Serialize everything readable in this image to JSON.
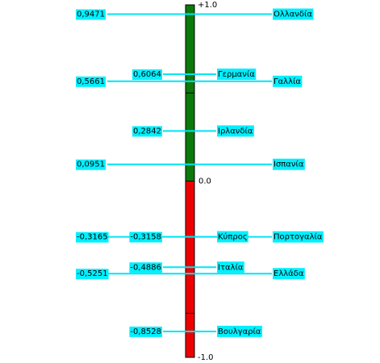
{
  "chart_data": {
    "type": "bar",
    "title": "",
    "xlabel": "",
    "ylabel": "",
    "ylim": [
      -1.0,
      1.0
    ],
    "axis_labels": {
      "max": "+1.0",
      "mid": "0.0",
      "min": "-1.0"
    },
    "colors": {
      "positive": "#0a7a0a",
      "negative": "#ee0000",
      "outline": "#000000",
      "line": "#00e5f5",
      "label_bg": "#00f0ff"
    },
    "left_items": [
      {
        "label": "0,9471",
        "value": 0.9471
      },
      {
        "label": "0,5661",
        "value": 0.5661
      },
      {
        "label": "0,0951",
        "value": 0.0951
      },
      {
        "label": "-0,3165",
        "value": -0.3165
      },
      {
        "label": "-0,5251",
        "value": -0.5251
      }
    ],
    "right_items": [
      {
        "label": "Ολλανδία",
        "value": 0.9471
      },
      {
        "label": "Γαλλία",
        "value": 0.5661
      },
      {
        "label": "Ισπανία",
        "value": 0.0951
      },
      {
        "label": "Πορτογαλία",
        "value": -0.3165
      },
      {
        "label": "Ελλάδα",
        "value": -0.5251
      }
    ],
    "center_items": [
      {
        "value_label": "0,6064",
        "name": "Γερμανία",
        "value": 0.6064
      },
      {
        "value_label": "0,2842",
        "name": "Ιρλανδία",
        "value": 0.2842
      },
      {
        "value_label": "-0,3158",
        "name": "Κύπρος",
        "value": -0.3158
      },
      {
        "value_label": "-0,4886",
        "name": "Ιταλία",
        "value": -0.4886
      },
      {
        "value_label": "-0,8528",
        "name": "Βουλγαρία",
        "value": -0.8528
      }
    ],
    "segment_dividers": [
      0.5,
      -0.75
    ]
  }
}
